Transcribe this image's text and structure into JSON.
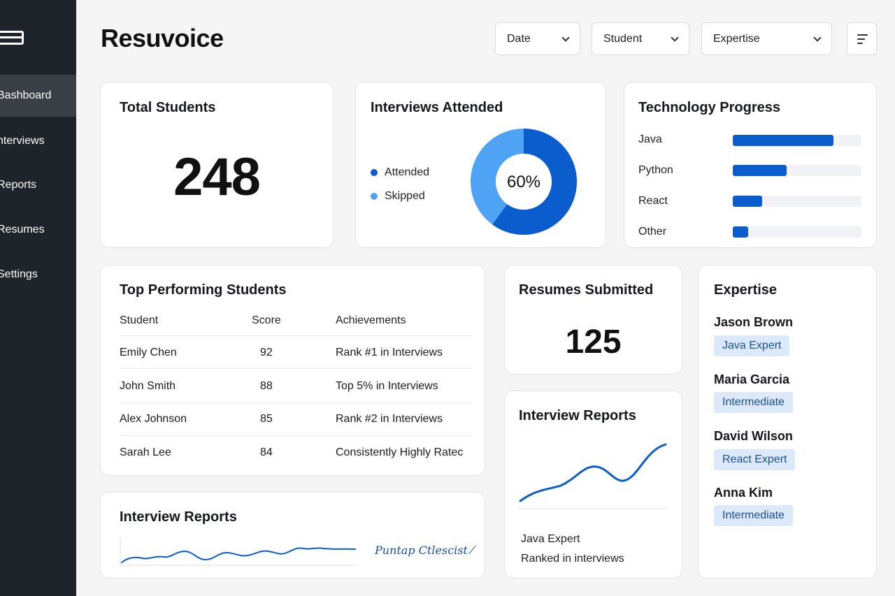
{
  "app": {
    "title": "Resuvoice"
  },
  "sidebar": {
    "items": [
      {
        "label": "Bashboard",
        "active": true
      },
      {
        "label": "nterviews"
      },
      {
        "label": "Reports"
      },
      {
        "label": "Resumes"
      },
      {
        "label": "Settings"
      }
    ]
  },
  "filters": [
    {
      "label": "Date"
    },
    {
      "label": "Student"
    },
    {
      "label": "Expertise"
    }
  ],
  "total_students": {
    "title": "Total Students",
    "value": "248"
  },
  "interviews_attended": {
    "title": "Interviews Attended",
    "legend": [
      {
        "label": "Attended",
        "color": "#0b5ccc"
      },
      {
        "label": "Skipped",
        "color": "#4fa3f5"
      }
    ],
    "center_label": "60%",
    "attended_fraction": 0.6
  },
  "technology_progress": {
    "title": "Technology Progress",
    "items": [
      {
        "label": "Java",
        "progress": 0.78
      },
      {
        "label": "Python",
        "progress": 0.42
      },
      {
        "label": "React",
        "progress": 0.23
      },
      {
        "label": "Other",
        "progress": 0.12
      }
    ],
    "bar_color": "#0b5ccc"
  },
  "top_students": {
    "title": "Top Performing Students",
    "columns": [
      "Student",
      "Score",
      "Achievements"
    ],
    "rows": [
      {
        "student": "Emily Chen",
        "score": "92",
        "achievement": "Rank #1 in Interviews"
      },
      {
        "student": "John Smith",
        "score": "88",
        "achievement": "Top 5% in Interviews"
      },
      {
        "student": "Alex Johnson",
        "score": "85",
        "achievement": "Rank #2 in Interviews"
      },
      {
        "student": "Sarah Lee",
        "score": "84",
        "achievement": "Consistently Highly Ratec"
      }
    ]
  },
  "resumes_submitted": {
    "title": "Resumes Submitted",
    "value": "125"
  },
  "interview_reports_side": {
    "title": "Interview Reports",
    "caption_line1": "Java Expert",
    "caption_line2": "Ranked in interviews"
  },
  "interview_reports_bottom": {
    "title": "Interview Reports",
    "signature": "Puntap Ctlescist ⁄"
  },
  "expertise": {
    "title": "Expertise",
    "people": [
      {
        "name": "Jason Brown",
        "badge": "Java Expert"
      },
      {
        "name": "Maria Garcia",
        "badge": "Intermediate"
      },
      {
        "name": "David Wilson",
        "badge": "React Expert"
      },
      {
        "name": "Anna Kim",
        "badge": "Intermediate"
      }
    ]
  },
  "colors": {
    "accent": "#0b5ccc",
    "accent_light": "#4fa3f5",
    "sidebar": "#1f242b",
    "badge_bg": "#dce9fb"
  }
}
